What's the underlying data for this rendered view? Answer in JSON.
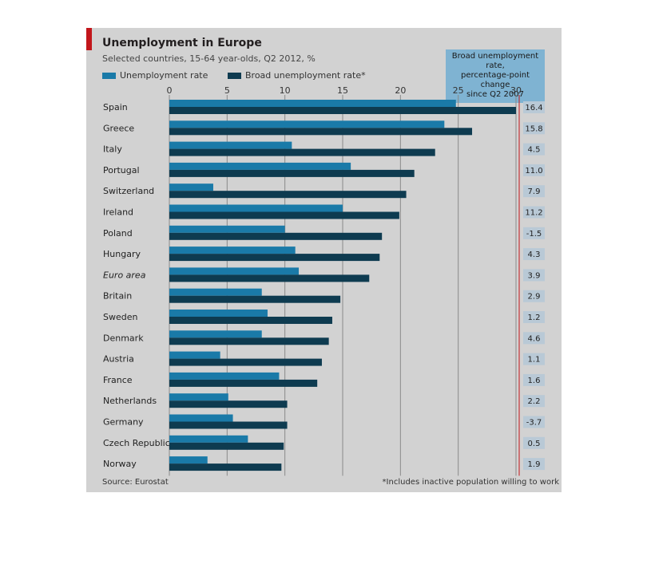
{
  "title": "Unemployment in Europe",
  "subtitle": "Selected countries, 15-64 year-olds, Q2 2012, %",
  "legend": [
    {
      "label": "Unemployment rate",
      "color": "#1a7aa8"
    },
    {
      "label": "Broad unemployment rate*",
      "color": "#0e3b50"
    }
  ],
  "callout": "Broad unemployment rate,\npercentage-point change\nsince Q2 2007",
  "source": "Source: Eurostat",
  "footnote": "*Includes inactive population willing to work",
  "colors": {
    "accent": "#c2161b",
    "unemployment": "#1a7aa8",
    "broad": "#0e3b50",
    "change_box": "#b9c9d6",
    "panel": "#d2d2d2",
    "grid": "#8a8a8a"
  },
  "chart_data": {
    "type": "bar",
    "orientation": "horizontal",
    "title": "Unemployment in Europe",
    "subtitle": "Selected countries, 15-64 year-olds, Q2 2012, %",
    "categories": [
      "Spain",
      "Greece",
      "Italy",
      "Portugal",
      "Switzerland",
      "Ireland",
      "Poland",
      "Hungary",
      "Euro area",
      "Britain",
      "Sweden",
      "Denmark",
      "Austria",
      "France",
      "Netherlands",
      "Germany",
      "Czech Republic",
      "Norway"
    ],
    "italic_categories": [
      "Euro area"
    ],
    "series": [
      {
        "name": "Unemployment rate",
        "values": [
          24.8,
          23.8,
          10.6,
          15.7,
          3.8,
          15.0,
          10.0,
          10.9,
          11.2,
          8.0,
          8.5,
          8.0,
          4.4,
          9.5,
          5.1,
          5.5,
          6.8,
          3.3
        ]
      },
      {
        "name": "Broad unemployment rate*",
        "values": [
          30.0,
          26.2,
          23.0,
          21.2,
          20.5,
          19.9,
          18.4,
          18.2,
          17.3,
          14.8,
          14.1,
          13.8,
          13.2,
          12.8,
          10.2,
          10.2,
          9.9,
          9.7
        ]
      }
    ],
    "change": {
      "label": "Broad unemployment rate, percentage-point change since Q2 2007",
      "values": [
        "16.4",
        "15.8",
        "4.5",
        "11.0",
        "7.9",
        "11.2",
        "-1.5",
        "4.3",
        "3.9",
        "2.9",
        "1.2",
        "4.6",
        "1.1",
        "1.6",
        "2.2",
        "-3.7",
        "0.5",
        "1.9"
      ]
    },
    "xticks": [
      0,
      5,
      10,
      15,
      20,
      25,
      30
    ],
    "xlim": [
      0,
      30
    ],
    "grid": true,
    "legend_position": "top-left"
  }
}
